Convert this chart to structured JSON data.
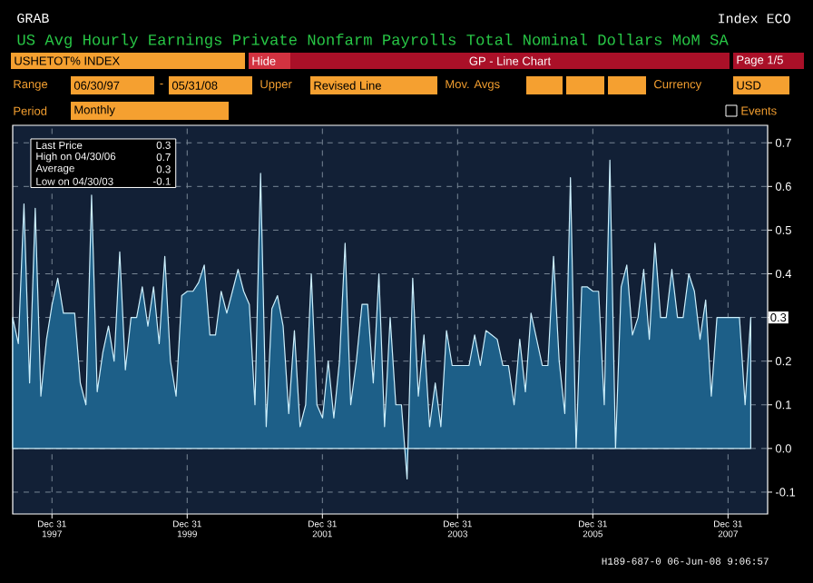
{
  "chart_data": {
    "type": "area",
    "title": "US Avg Hourly Earnings Private Nonfarm Payrolls Total Nominal Dollars MoM SA",
    "x": [
      "1997-06",
      "1997-07",
      "1997-08",
      "1997-09",
      "1997-10",
      "1997-11",
      "1997-12",
      "1998-01",
      "1998-02",
      "1998-03",
      "1998-04",
      "1998-05",
      "1998-06",
      "1998-07",
      "1998-08",
      "1998-09",
      "1998-10",
      "1998-11",
      "1998-12",
      "1999-01",
      "1999-02",
      "1999-03",
      "1999-04",
      "1999-05",
      "1999-06",
      "1999-07",
      "1999-08",
      "1999-09",
      "1999-10",
      "1999-11",
      "1999-12",
      "2000-01",
      "2000-02",
      "2000-03",
      "2000-04",
      "2000-05",
      "2000-06",
      "2000-07",
      "2000-08",
      "2000-09",
      "2000-10",
      "2000-11",
      "2000-12",
      "2001-01",
      "2001-02",
      "2001-03",
      "2001-04",
      "2001-05",
      "2001-06",
      "2001-07",
      "2001-08",
      "2001-09",
      "2001-10",
      "2001-11",
      "2001-12",
      "2002-01",
      "2002-02",
      "2002-03",
      "2002-04",
      "2002-05",
      "2002-06",
      "2002-07",
      "2002-08",
      "2002-09",
      "2002-10",
      "2002-11",
      "2002-12",
      "2003-01",
      "2003-02",
      "2003-03",
      "2003-04",
      "2003-05",
      "2003-06",
      "2003-07",
      "2003-08",
      "2003-09",
      "2003-10",
      "2003-11",
      "2003-12",
      "2004-01",
      "2004-02",
      "2004-03",
      "2004-04",
      "2004-05",
      "2004-06",
      "2004-07",
      "2004-08",
      "2004-09",
      "2004-10",
      "2004-11",
      "2004-12",
      "2005-01",
      "2005-02",
      "2005-03",
      "2005-04",
      "2005-05",
      "2005-06",
      "2005-07",
      "2005-08",
      "2005-09",
      "2005-10",
      "2005-11",
      "2005-12",
      "2006-01",
      "2006-02",
      "2006-03",
      "2006-04",
      "2006-05",
      "2006-06",
      "2006-07",
      "2006-08",
      "2006-09",
      "2006-10",
      "2006-11",
      "2006-12",
      "2007-01",
      "2007-02",
      "2007-03",
      "2007-04",
      "2007-05",
      "2007-06",
      "2007-07",
      "2007-08",
      "2007-09",
      "2007-10",
      "2007-11",
      "2007-12",
      "2008-01",
      "2008-02",
      "2008-03",
      "2008-04",
      "2008-05"
    ],
    "series": [
      {
        "color": "#1d5f88",
        "values": [
          0.3,
          0.24,
          0.56,
          0.15,
          0.55,
          0.12,
          0.25,
          0.33,
          0.39,
          0.31,
          0.31,
          0.31,
          0.15,
          0.1,
          0.58,
          0.13,
          0.22,
          0.28,
          0.2,
          0.45,
          0.18,
          0.3,
          0.3,
          0.37,
          0.28,
          0.37,
          0.24,
          0.44,
          0.2,
          0.12,
          0.35,
          0.36,
          0.36,
          0.38,
          0.42,
          0.26,
          0.26,
          0.36,
          0.31,
          0.36,
          0.41,
          0.36,
          0.33,
          0.1,
          0.63,
          0.05,
          0.32,
          0.35,
          0.28,
          0.08,
          0.27,
          0.05,
          0.1,
          0.4,
          0.1,
          0.07,
          0.2,
          0.07,
          0.2,
          0.47,
          0.1,
          0.2,
          0.33,
          0.33,
          0.15,
          0.4,
          0.05,
          0.3,
          0.1,
          0.1,
          -0.07,
          0.39,
          0.12,
          0.26,
          0.05,
          0.15,
          0.05,
          0.27,
          0.19,
          0.19,
          0.19,
          0.19,
          0.26,
          0.19,
          0.27,
          0.26,
          0.25,
          0.19,
          0.19,
          0.1,
          0.25,
          0.13,
          0.31,
          0.25,
          0.19,
          0.19,
          0.44,
          0.2,
          0.08,
          0.62,
          0.0,
          0.37,
          0.37,
          0.36,
          0.36,
          0.1,
          0.66,
          0.0,
          0.37,
          0.42,
          0.26,
          0.3,
          0.41,
          0.25,
          0.47,
          0.3,
          0.3,
          0.41,
          0.3,
          0.3,
          0.4,
          0.36,
          0.25,
          0.34,
          0.12,
          0.3,
          0.3,
          0.3,
          0.3,
          0.3,
          0.1,
          0.3
        ]
      }
    ],
    "xlim": [
      "1997-06-01",
      "2008-08-01"
    ],
    "xticks": [
      {
        "value": "1997-12-31",
        "label": "Dec 31 1997"
      },
      {
        "value": "1999-12-31",
        "label": "Dec 31 1999"
      },
      {
        "value": "2001-12-31",
        "label": "Dec 31 2001"
      },
      {
        "value": "2003-12-31",
        "label": "Dec 31 2003"
      },
      {
        "value": "2005-12-31",
        "label": "Dec 31 2005"
      },
      {
        "value": "2007-12-31",
        "label": "Dec 31 2007"
      }
    ],
    "ylim": [
      -0.15,
      0.74
    ],
    "yticks": [
      -0.1,
      {
        "value": 0,
        "label": "0.0"
      },
      0.1,
      0.2,
      {
        "value": 0.3,
        "label": null
      },
      0.4,
      0.5,
      0.6,
      0.7
    ],
    "grid": true,
    "annotations": [
      "GRAB",
      "Index ECO",
      "USHETOT% INDEX",
      "Hide",
      "GP - Line Chart",
      "Page 1/5",
      "Range",
      "06/30/97",
      "-",
      "05/31/08",
      "Upper",
      "Revised Line",
      "Mov. Avgs",
      "Currency",
      "USD",
      "Period",
      "Monthly",
      "Events",
      "Last Price",
      "0.3",
      "High on 04/30/06",
      "0.7",
      "Average",
      "0.3",
      "Low on 04/30/03",
      "-0.1",
      "H189-687-0 06-Jun-08 9:06:57",
      {
        "text": "0.3",
        "x": "2008-05",
        "y": 0.3
      }
    ]
  }
}
